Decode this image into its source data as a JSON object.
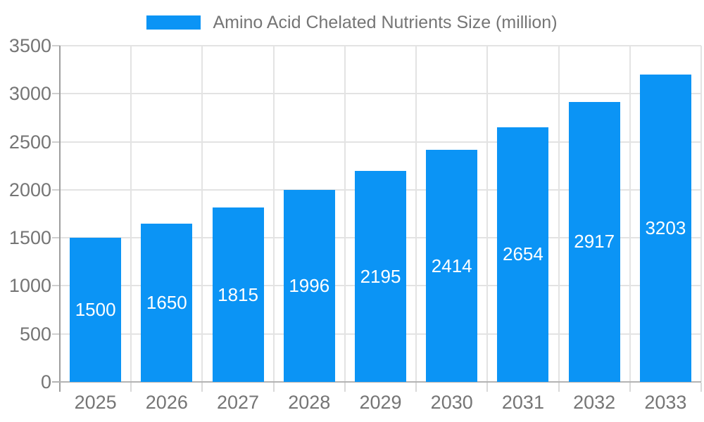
{
  "legend": {
    "label": "Amino Acid Chelated Nutrients Size (million)",
    "swatch_color": "#0b94f5"
  },
  "chart_data": {
    "type": "bar",
    "title": "Amino Acid Chelated Nutrients Size (million)",
    "categories": [
      "2025",
      "2026",
      "2027",
      "2028",
      "2029",
      "2030",
      "2031",
      "2032",
      "2033"
    ],
    "values": [
      1500,
      1650,
      1815,
      1996,
      2195,
      2414,
      2654,
      2917,
      3203
    ],
    "xlabel": "",
    "ylabel": "",
    "ylim": [
      0,
      3500
    ],
    "ytick_step": 500,
    "ytick_labels": [
      "0",
      "500",
      "1000",
      "1500",
      "2000",
      "2500",
      "3000",
      "3500"
    ],
    "grid": true,
    "legend_position": "top-center",
    "bar_color": "#0b94f5",
    "value_label_color": "#ffffff",
    "axis_text_color": "#757575",
    "value_labels_shown": true
  }
}
